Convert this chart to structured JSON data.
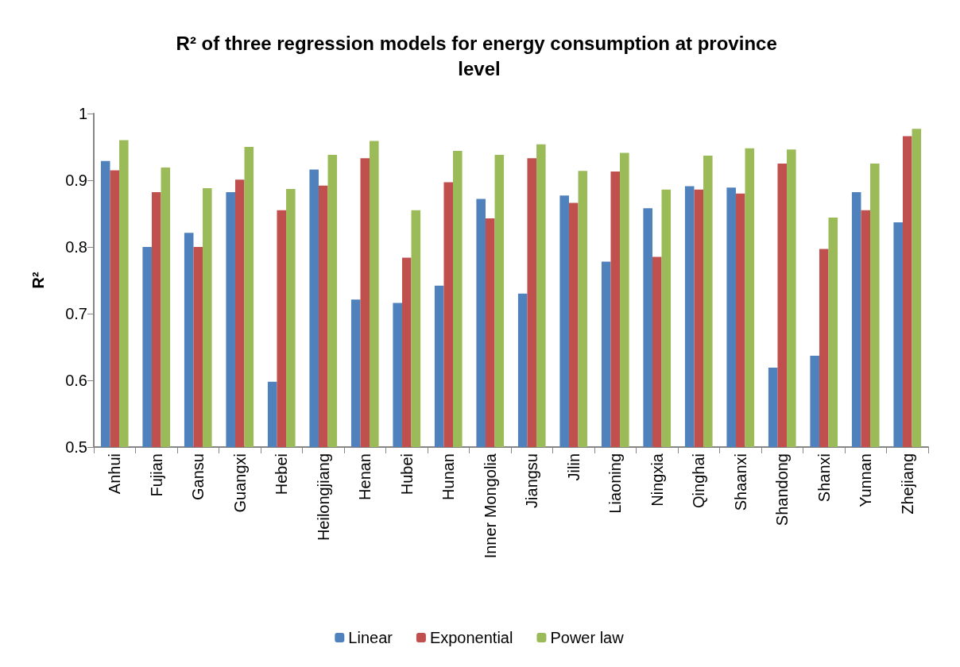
{
  "chart_data": {
    "type": "bar",
    "title": "R² of three regression models for energy consumption at province level",
    "ylabel": "R²",
    "categories": [
      "Anhui",
      "Fujian",
      "Gansu",
      "Guangxi",
      "Hebei",
      "Heilongjiang",
      "Henan",
      "Hubei",
      "Hunan",
      "Inner Mongolia",
      "Jiangsu",
      "Jilin",
      "Liaoning",
      "Ningxia",
      "Qinghai",
      "Shaanxi",
      "Shandong",
      "Shanxi",
      "Yunnan",
      "Zhejiang"
    ],
    "series": [
      {
        "name": "Linear",
        "color": "#4f81bd",
        "values": [
          0.929,
          0.8,
          0.821,
          0.882,
          0.598,
          0.916,
          0.721,
          0.716,
          0.742,
          0.872,
          0.73,
          0.877,
          0.778,
          0.858,
          0.891,
          0.889,
          0.619,
          0.637,
          0.882,
          0.837
        ]
      },
      {
        "name": "Exponential",
        "color": "#c0504d",
        "values": [
          0.915,
          0.882,
          0.8,
          0.901,
          0.855,
          0.892,
          0.933,
          0.784,
          0.897,
          0.843,
          0.933,
          0.866,
          0.913,
          0.785,
          0.886,
          0.88,
          0.925,
          0.797,
          0.855,
          0.966
        ]
      },
      {
        "name": "Power law",
        "color": "#9bbb59",
        "values": [
          0.96,
          0.919,
          0.888,
          0.95,
          0.887,
          0.938,
          0.959,
          0.855,
          0.944,
          0.938,
          0.954,
          0.914,
          0.941,
          0.886,
          0.937,
          0.948,
          0.946,
          0.844,
          0.925,
          0.977
        ]
      }
    ],
    "ylim": [
      0.5,
      1
    ],
    "yticks": [
      0.5,
      0.6,
      0.7,
      0.8,
      0.9,
      1
    ],
    "grid": false,
    "legend": "bottom"
  }
}
